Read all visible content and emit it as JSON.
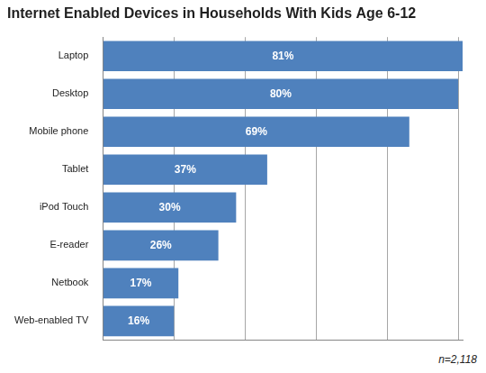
{
  "chart_data": {
    "type": "bar",
    "title": "Internet Enabled Devices in Households With Kids Age 6-12",
    "orientation": "horizontal",
    "categories": [
      "Laptop",
      "Desktop",
      "Mobile phone",
      "Tablet",
      "iPod Touch",
      "E-reader",
      "Netbook",
      "Web-enabled TV"
    ],
    "values": [
      81,
      80,
      69,
      37,
      30,
      26,
      17,
      16
    ],
    "value_labels": [
      "81%",
      "80%",
      "69%",
      "37%",
      "30%",
      "26%",
      "17%",
      "16%"
    ],
    "data_labels": true,
    "color": "#4f81bd",
    "xlim": [
      0,
      81
    ],
    "xticks": [
      0,
      16,
      32,
      48,
      64,
      80
    ],
    "grid": true,
    "tick_labels": "y",
    "annotations": [
      "n=2,118"
    ]
  }
}
